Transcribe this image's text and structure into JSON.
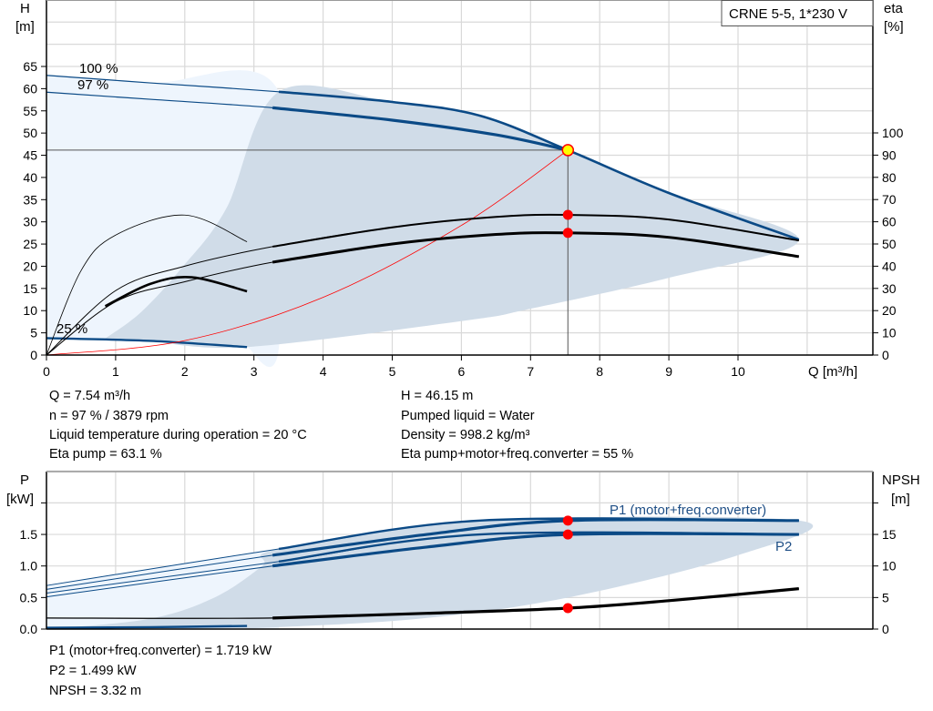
{
  "title_box": "CRNE 5-5, 1*230 V",
  "colors": {
    "curve_blue": "#0b4a86",
    "shade_dark": "#d0dce8",
    "shade_light": "#eef5fd",
    "duty_red": "#ff0000",
    "duty_yellow": "#ffff00",
    "grid": "#d9d9d9"
  },
  "chart_data": [
    {
      "type": "line",
      "xlabel": "Q [m³/h]",
      "ylabel_left": [
        "H",
        "[m]"
      ],
      "ylabel_right": [
        "eta",
        "[%]"
      ],
      "xlim": [
        0,
        11.95
      ],
      "ylim_left": [
        0,
        80
      ],
      "ylim_right": [
        0,
        164
      ],
      "x_ticks": [
        "0",
        "1",
        "2",
        "3",
        "4",
        "5",
        "6",
        "7",
        "8",
        "9",
        "10"
      ],
      "y_left_ticks": [
        "0",
        "5",
        "10",
        "15",
        "20",
        "25",
        "30",
        "35",
        "40",
        "45",
        "50",
        "55",
        "60",
        "65"
      ],
      "y_right_ticks": [
        "0",
        "10",
        "20",
        "30",
        "40",
        "50",
        "60",
        "70",
        "80",
        "90",
        "100"
      ],
      "grid": true,
      "speed_labels": [
        "100 %",
        "97 %",
        "25 %"
      ],
      "H_curves": [
        {
          "name": "100 %",
          "points": [
            [
              0,
              63
            ],
            [
              1.5,
              61.3
            ],
            [
              3.36,
              59.3
            ],
            [
              5,
              57
            ],
            [
              6.27,
              53.9
            ],
            [
              7.54,
              46.15
            ],
            [
              9,
              36.5
            ],
            [
              10.88,
              26
            ]
          ]
        },
        {
          "name": "97 %",
          "points": [
            [
              0,
              59.2
            ],
            [
              1.5,
              57.6
            ],
            [
              3.27,
              55.7
            ],
            [
              5,
              52.9
            ],
            [
              6.5,
              49.6
            ],
            [
              7.54,
              46.15
            ]
          ]
        },
        {
          "name": "25 %",
          "points": [
            [
              0,
              3.8
            ],
            [
              1.5,
              3.2
            ],
            [
              2.9,
              1.8
            ]
          ]
        }
      ],
      "system_curve": [
        [
          0,
          0
        ],
        [
          2,
          3.25
        ],
        [
          4,
          13
        ],
        [
          6,
          29.2
        ],
        [
          7.54,
          46.15
        ]
      ],
      "eta_curves": [
        {
          "points": [
            [
              0,
              0
            ],
            [
              1,
              29
            ],
            [
              2,
              40
            ],
            [
              3.27,
              48.8
            ],
            [
              5,
              57.5
            ],
            [
              6.5,
              62.2
            ],
            [
              7.54,
              63.1
            ],
            [
              9,
              61
            ],
            [
              10.88,
              51.6
            ]
          ]
        },
        {
          "points": [
            [
              0,
              0
            ],
            [
              1,
              24
            ],
            [
              2,
              33
            ],
            [
              3.27,
              41.8
            ],
            [
              5,
              50
            ],
            [
              6.5,
              54.3
            ],
            [
              7.54,
              55
            ],
            [
              9,
              53
            ],
            [
              10.88,
              44.3
            ]
          ]
        },
        {
          "points": [
            [
              0,
              0
            ],
            [
              0.5,
              38
            ],
            [
              1,
              54
            ],
            [
              2,
              63
            ],
            [
              2.9,
              51
            ]
          ]
        },
        {
          "points": [
            [
              0.85,
              22
            ],
            [
              1.5,
              32
            ],
            [
              2.1,
              35
            ],
            [
              2.9,
              28.7
            ]
          ]
        }
      ],
      "operating_region": [
        [
          0.84,
          3.6
        ],
        [
          1.37,
          9.7
        ],
        [
          1.96,
          19.7
        ],
        [
          2.6,
          33
        ],
        [
          3.36,
          59.3
        ],
        [
          5,
          57
        ],
        [
          6.27,
          53.9
        ],
        [
          7.54,
          46.15
        ],
        [
          9,
          36.5
        ],
        [
          10.88,
          26
        ],
        [
          9,
          17.4
        ],
        [
          6.96,
          10.3
        ],
        [
          6.07,
          7.8
        ],
        [
          2.9,
          1.8
        ],
        [
          1.5,
          3.2
        ]
      ],
      "duty_point": {
        "Q": 7.54,
        "H": 46.15,
        "eta_pump": 63.1,
        "eta_total": 55
      }
    },
    {
      "type": "line",
      "ylabel_left": [
        "P",
        "[kW]"
      ],
      "ylabel_right": [
        "NPSH",
        "[m]"
      ],
      "xlim": [
        0,
        11.95
      ],
      "ylim_left": [
        0,
        2.5
      ],
      "ylim_right": [
        0,
        25
      ],
      "y_left_ticks": [
        "0.0",
        "0.5",
        "1.0",
        "1.5"
      ],
      "y_right_ticks": [
        "0",
        "5",
        "10",
        "15"
      ],
      "grid": true,
      "P_curves": [
        {
          "name": "P1 (motor+freq.converter)",
          "points": [
            [
              0,
              0.63
            ],
            [
              3.27,
              1.17
            ],
            [
              5.5,
              1.5
            ],
            [
              7.54,
              1.719
            ],
            [
              10.88,
              1.72
            ]
          ]
        },
        {
          "points": [
            [
              0,
              0.69
            ],
            [
              3.36,
              1.27
            ],
            [
              6.27,
              1.72
            ],
            [
              10.88,
              1.72
            ]
          ]
        },
        {
          "name": "P2",
          "points": [
            [
              0,
              0.51
            ],
            [
              3.27,
              1.0
            ],
            [
              5.5,
              1.3
            ],
            [
              7.54,
              1.499
            ],
            [
              10.88,
              1.5
            ]
          ]
        },
        {
          "points": [
            [
              0,
              0.57
            ],
            [
              3.36,
              1.07
            ],
            [
              6.27,
              1.5
            ],
            [
              10.88,
              1.5
            ]
          ]
        },
        {
          "points": [
            [
              0,
              0.02
            ],
            [
              1.5,
              0.03
            ],
            [
              2.9,
              0.05
            ]
          ]
        }
      ],
      "NPSH_curve": [
        [
          0,
          1.75
        ],
        [
          3.27,
          1.75
        ],
        [
          5.5,
          2.5
        ],
        [
          7.54,
          3.32
        ],
        [
          9,
          4.5
        ],
        [
          10.88,
          6.4
        ]
      ],
      "operating_region": [
        [
          0,
          0
        ],
        [
          1.48,
          0.16
        ],
        [
          2.43,
          0.5
        ],
        [
          3.12,
          1.0
        ],
        [
          3.36,
          1.27
        ],
        [
          6.27,
          1.72
        ],
        [
          10.88,
          1.72
        ],
        [
          10,
          1.17
        ],
        [
          7.54,
          0.5
        ],
        [
          5.36,
          0.16
        ],
        [
          2.95,
          0.01
        ]
      ],
      "duty_point": {
        "P1": 1.719,
        "P2": 1.499,
        "NPSH": 3.32
      }
    }
  ],
  "info_top_left": [
    "Q = 7.54 m³/h",
    "n = 97 % / 3879 rpm",
    "Liquid temperature during operation = 20 °C",
    "Eta pump = 63.1 %"
  ],
  "info_top_right": [
    "H = 46.15 m",
    "Pumped liquid = Water",
    "Density = 998.2 kg/m³",
    "Eta pump+motor+freq.converter = 55 %"
  ],
  "info_bottom": [
    "P1 (motor+freq.converter) = 1.719 kW",
    "P2 = 1.499 kW",
    "NPSH = 3.32 m"
  ]
}
